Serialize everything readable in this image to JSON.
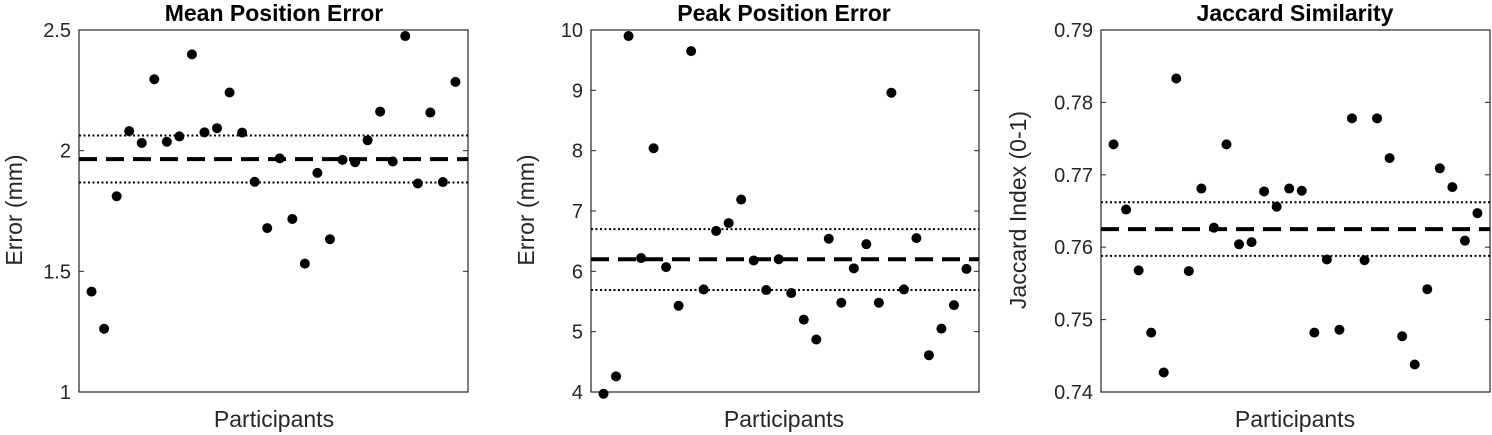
{
  "colors": {
    "marker": "#000000",
    "axis": "#262626",
    "background": "#ffffff"
  },
  "chart_data": [
    {
      "type": "scatter",
      "title": "Mean Position Error",
      "xlabel": "Participants",
      "ylabel": "Error (mm)",
      "ylim": [
        1,
        2.5
      ],
      "yticks": [
        1,
        1.5,
        2,
        2.5
      ],
      "ytick_labels": [
        "1",
        "1.5",
        "2",
        "2.5"
      ],
      "xticks_shown": false,
      "grid": false,
      "mean_line": 1.965,
      "ci_lines": [
        1.868,
        2.063
      ],
      "x": [
        1,
        2,
        3,
        4,
        5,
        6,
        7,
        8,
        9,
        10,
        11,
        12,
        13,
        14,
        15,
        16,
        17,
        18,
        19,
        20,
        21,
        22,
        23,
        24,
        25,
        26,
        27,
        28,
        29,
        30
      ],
      "values": [
        1.416,
        1.262,
        1.811,
        2.081,
        2.032,
        2.296,
        2.037,
        2.059,
        2.399,
        2.076,
        2.093,
        2.241,
        2.075,
        1.871,
        1.679,
        1.968,
        1.717,
        1.532,
        1.908,
        1.633,
        1.962,
        1.952,
        2.043,
        2.162,
        1.955,
        2.475,
        1.864,
        2.158,
        1.87,
        2.285
      ]
    },
    {
      "type": "scatter",
      "title": "Peak Position Error",
      "xlabel": "Participants",
      "ylabel": "Error (mm)",
      "ylim": [
        4,
        10
      ],
      "yticks": [
        4,
        5,
        6,
        7,
        8,
        9,
        10
      ],
      "ytick_labels": [
        "4",
        "5",
        "6",
        "7",
        "8",
        "9",
        "10"
      ],
      "xticks_shown": false,
      "grid": false,
      "mean_line": 6.2,
      "ci_lines": [
        5.69,
        6.7
      ],
      "x": [
        1,
        2,
        3,
        4,
        5,
        6,
        7,
        8,
        9,
        10,
        11,
        12,
        13,
        14,
        15,
        16,
        17,
        18,
        19,
        20,
        21,
        22,
        23,
        24,
        25,
        26,
        27,
        28,
        29,
        30
      ],
      "values": [
        3.97,
        4.26,
        9.9,
        6.22,
        8.04,
        6.07,
        5.43,
        9.65,
        5.7,
        6.67,
        6.8,
        7.19,
        6.18,
        5.69,
        6.2,
        5.64,
        5.2,
        4.87,
        6.54,
        5.48,
        6.05,
        6.45,
        5.48,
        8.96,
        5.7,
        6.55,
        4.61,
        5.05,
        5.44,
        6.04
      ]
    },
    {
      "type": "scatter",
      "title": "Jaccard Similarity",
      "xlabel": "Participants",
      "ylabel": "Jaccard Index (0-1)",
      "ylim": [
        0.74,
        0.79
      ],
      "yticks": [
        0.74,
        0.75,
        0.76,
        0.77,
        0.78,
        0.79
      ],
      "ytick_labels": [
        "0.74",
        "0.75",
        "0.76",
        "0.77",
        "0.78",
        "0.79"
      ],
      "xticks_shown": false,
      "grid": false,
      "mean_line": 0.7625,
      "ci_lines": [
        0.7588,
        0.7662
      ],
      "x": [
        1,
        2,
        3,
        4,
        5,
        6,
        7,
        8,
        9,
        10,
        11,
        12,
        13,
        14,
        15,
        16,
        17,
        18,
        19,
        20,
        21,
        22,
        23,
        24,
        25,
        26,
        27,
        28,
        29,
        30
      ],
      "values": [
        0.7742,
        0.7652,
        0.7568,
        0.7482,
        0.7427,
        0.7833,
        0.7567,
        0.7681,
        0.7627,
        0.7742,
        0.7604,
        0.7607,
        0.7677,
        0.7656,
        0.7681,
        0.7678,
        0.7482,
        0.7583,
        0.7486,
        0.7778,
        0.7582,
        0.7778,
        0.7723,
        0.7477,
        0.7438,
        0.7542,
        0.7709,
        0.7683,
        0.7609,
        0.7647
      ]
    }
  ]
}
